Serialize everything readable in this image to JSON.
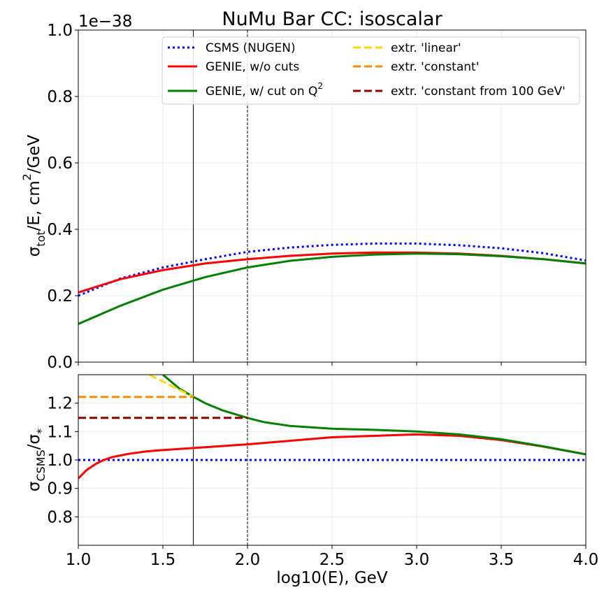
{
  "title": "NuMu Bar CC: isoscalar",
  "x_axis_label": "log10(E), GeV",
  "chart_data": [
    {
      "type": "line",
      "panel": "top",
      "title": "NuMu Bar CC: isoscalar",
      "ylabel_main": "σ",
      "ylabel_sub": "tot",
      "ylabel_rest": "/E, cm",
      "ylabel_sup": "2",
      "ylabel_end": "/GeV",
      "scale_label": "1e−38",
      "xlim": [
        1.0,
        4.0
      ],
      "ylim": [
        0.0,
        1.0
      ],
      "xticks": [
        "1.0",
        "1.5",
        "2.0",
        "2.5",
        "3.0",
        "3.5",
        "4.0"
      ],
      "yticks": [
        "0.0",
        "0.2",
        "0.4",
        "0.6",
        "0.8",
        "1.0"
      ],
      "grid": true,
      "vlines": [
        {
          "x": 1.68,
          "style": "solid"
        },
        {
          "x": 2.0,
          "style": "dashed"
        }
      ],
      "legend_position": "top-right",
      "legend": [
        {
          "label": "CSMS (NUGEN)",
          "color": "#0000ff",
          "style": "dotted"
        },
        {
          "label": "GENIE, w/o cuts",
          "color": "#ff0000",
          "style": "solid"
        },
        {
          "label_main": "GENIE, w/ cut on Q",
          "label_sup": "2",
          "color": "#008000",
          "style": "solid"
        },
        {
          "label": "extr. 'linear'",
          "color": "#ffd700",
          "style": "dashed"
        },
        {
          "label": "extr. 'constant'",
          "color": "#ff8c00",
          "style": "dashed"
        },
        {
          "label": "extr. 'constant from 100 GeV'",
          "color": "#8b0000",
          "style": "dashed"
        }
      ],
      "series": [
        {
          "color": "#0000ff",
          "style": "dotted",
          "x": [
            1.0,
            1.25,
            1.5,
            1.75,
            2.0,
            2.25,
            2.5,
            2.75,
            3.0,
            3.25,
            3.5,
            3.75,
            4.0
          ],
          "y": [
            0.2,
            0.252,
            0.285,
            0.31,
            0.332,
            0.345,
            0.353,
            0.357,
            0.357,
            0.352,
            0.343,
            0.328,
            0.306
          ]
        },
        {
          "color": "#ff0000",
          "style": "solid",
          "x": [
            1.0,
            1.25,
            1.5,
            1.75,
            2.0,
            2.25,
            2.5,
            2.75,
            3.0,
            3.25,
            3.5,
            3.75,
            4.0
          ],
          "y": [
            0.21,
            0.25,
            0.277,
            0.297,
            0.31,
            0.32,
            0.327,
            0.33,
            0.33,
            0.327,
            0.32,
            0.31,
            0.297
          ]
        },
        {
          "color": "#008000",
          "style": "solid",
          "x": [
            1.0,
            1.25,
            1.5,
            1.75,
            2.0,
            2.25,
            2.5,
            2.75,
            3.0,
            3.25,
            3.5,
            3.75,
            4.0
          ],
          "y": [
            0.115,
            0.17,
            0.218,
            0.256,
            0.285,
            0.305,
            0.317,
            0.324,
            0.327,
            0.325,
            0.319,
            0.31,
            0.297
          ]
        }
      ]
    },
    {
      "type": "line",
      "panel": "bottom",
      "ylabel_a": "σ",
      "ylabel_a_sub": "CSMS",
      "ylabel_slash": "/",
      "ylabel_b": "σ",
      "ylabel_b_sub": "*",
      "xlabel": "log10(E), GeV",
      "xlim": [
        1.0,
        4.0
      ],
      "ylim": [
        0.7,
        1.3
      ],
      "xticks": [
        "1.0",
        "1.5",
        "2.0",
        "2.5",
        "3.0",
        "3.5",
        "4.0"
      ],
      "yticks": [
        "0.8",
        "0.9",
        "1.0",
        "1.1",
        "1.2"
      ],
      "grid": true,
      "vlines": [
        {
          "x": 1.68,
          "style": "solid"
        },
        {
          "x": 2.0,
          "style": "dashed"
        }
      ],
      "series": [
        {
          "color": "#0000ff",
          "style": "dotted",
          "x": [
            1.0,
            4.0
          ],
          "y": [
            1.0,
            1.0
          ]
        },
        {
          "color": "#ff0000",
          "style": "solid",
          "x": [
            1.0,
            1.05,
            1.1,
            1.15,
            1.2,
            1.3,
            1.4,
            1.5,
            1.68,
            2.0,
            2.5,
            3.0,
            3.25,
            3.5,
            3.75,
            4.0
          ],
          "y": [
            0.935,
            0.965,
            0.985,
            1.0,
            1.01,
            1.022,
            1.03,
            1.035,
            1.042,
            1.055,
            1.08,
            1.09,
            1.085,
            1.07,
            1.047,
            1.02
          ]
        },
        {
          "color": "#008000",
          "style": "solid",
          "x": [
            1.5,
            1.55,
            1.6,
            1.68,
            1.75,
            1.85,
            2.0,
            2.1,
            2.25,
            2.5,
            2.75,
            3.0,
            3.25,
            3.5,
            3.75,
            4.0
          ],
          "y": [
            1.3,
            1.275,
            1.25,
            1.222,
            1.2,
            1.175,
            1.148,
            1.133,
            1.12,
            1.11,
            1.106,
            1.1,
            1.09,
            1.073,
            1.048,
            1.02
          ]
        },
        {
          "color": "#ffd700",
          "style": "dashed",
          "x": [
            1.42,
            1.68
          ],
          "y": [
            1.3,
            1.222
          ]
        },
        {
          "color": "#ff8c00",
          "style": "dashed",
          "x": [
            1.0,
            1.68
          ],
          "y": [
            1.222,
            1.222
          ]
        },
        {
          "color": "#8b0000",
          "style": "dashed",
          "x": [
            1.0,
            2.0
          ],
          "y": [
            1.148,
            1.148
          ]
        }
      ]
    }
  ]
}
